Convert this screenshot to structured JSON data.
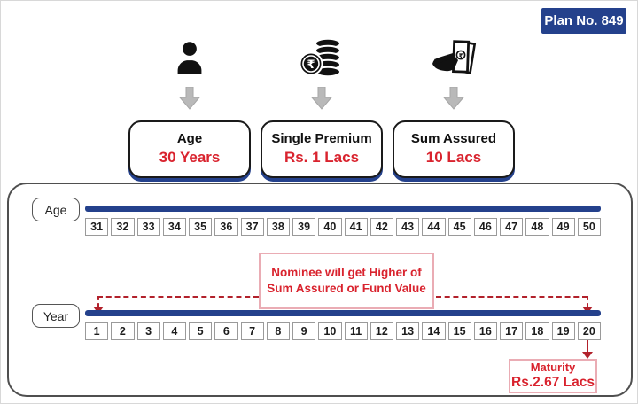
{
  "badge": {
    "label": "Plan No. 849"
  },
  "glyphs": {
    "rupee": "₹"
  },
  "inputs": [
    {
      "icon": "person-icon",
      "title": "Age",
      "value": "30 Years"
    },
    {
      "icon": "rupee-coins-icon",
      "title": "Single Premium",
      "value": "Rs. 1 Lacs"
    },
    {
      "icon": "hand-money-icon",
      "title": "Sum Assured",
      "value": "10 Lacs"
    }
  ],
  "timeline": {
    "age": {
      "label": "Age",
      "values": [
        "31",
        "32",
        "33",
        "34",
        "35",
        "36",
        "37",
        "38",
        "39",
        "40",
        "41",
        "42",
        "43",
        "44",
        "45",
        "46",
        "47",
        "48",
        "49",
        "50"
      ]
    },
    "year": {
      "label": "Year",
      "values": [
        "1",
        "2",
        "3",
        "4",
        "5",
        "6",
        "7",
        "8",
        "9",
        "10",
        "11",
        "12",
        "13",
        "14",
        "15",
        "16",
        "17",
        "18",
        "19",
        "20"
      ]
    },
    "annotation": {
      "line1": "Nominee will get Higher of",
      "line2": "Sum Assured or Fund Value"
    },
    "maturity": {
      "title": "Maturity",
      "value": "Rs.2.67 Lacs"
    }
  },
  "colors": {
    "navy": "#24418c",
    "red_text": "#d9232e",
    "dark_red_lines": "#b2212b",
    "pink_border": "#eaacb4",
    "gray_arrow": "#b9b9b9"
  }
}
